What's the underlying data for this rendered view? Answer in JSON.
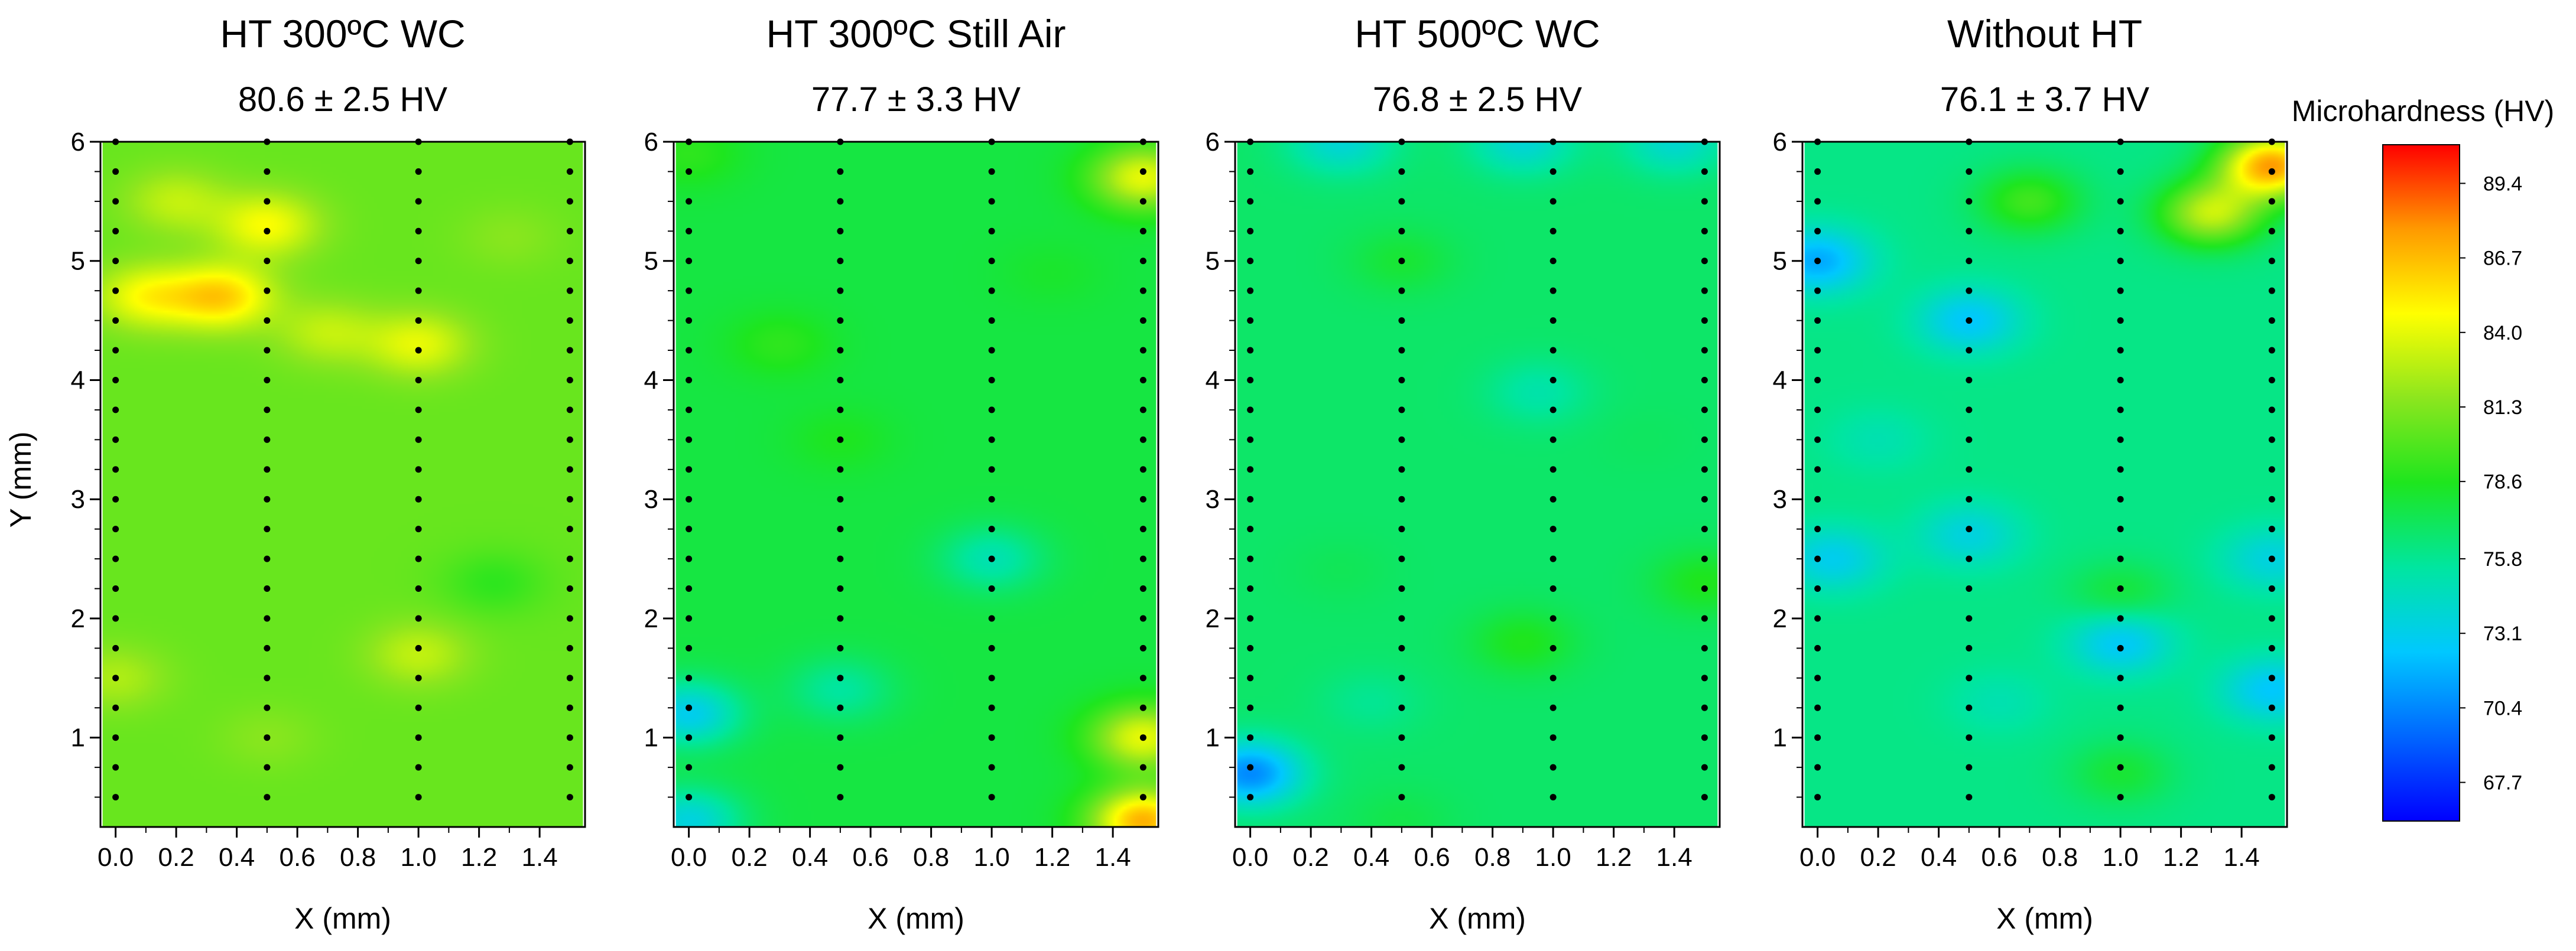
{
  "chart_data": {
    "type": "heatmap",
    "ylabel": "Y (mm)",
    "xlabel": "X (mm)",
    "xlim": [
      -0.05,
      1.55
    ],
    "ylim": [
      0.25,
      6.0
    ],
    "x_ticks": [
      0.0,
      0.2,
      0.4,
      0.6,
      0.8,
      1.0,
      1.2,
      1.4
    ],
    "x_tick_labels": [
      "0.0",
      "0.2",
      "0.4",
      "0.6",
      "0.8",
      "1.0",
      "1.2",
      "1.4"
    ],
    "y_ticks": [
      1,
      2,
      3,
      4,
      5,
      6
    ],
    "y_tick_labels": [
      "1",
      "2",
      "3",
      "4",
      "5",
      "6"
    ],
    "measurement_columns_x": [
      0.0,
      0.5,
      1.0,
      1.5
    ],
    "measurement_rows_y_start": 0.5,
    "measurement_rows_y_step": 0.25,
    "measurement_rows_y_end": 6.0,
    "colorbar": {
      "label": "Microhardness (HV)",
      "min": 66.3,
      "max": 90.8,
      "ticks": [
        89.4,
        86.7,
        84.0,
        81.3,
        78.6,
        75.8,
        73.1,
        70.4,
        67.7
      ],
      "tick_labels": [
        "89.4",
        "86.7",
        "84.0",
        "81.3",
        "78.6",
        "75.8",
        "73.1",
        "70.4",
        "67.7"
      ],
      "colormap": [
        "#0000ff",
        "#0066ff",
        "#00c8ff",
        "#00e6a0",
        "#1ee61e",
        "#8ce61e",
        "#ffff00",
        "#ff9a00",
        "#ff0000"
      ]
    },
    "panels": [
      {
        "title": "HT 300ºC WC",
        "subtitle": "80.6 ± 2.5 HV",
        "mean": 80.6,
        "std": 2.5,
        "hotspots": [
          {
            "x": 0.35,
            "y": 4.7,
            "hv": 86.0
          },
          {
            "x": 0.1,
            "y": 4.7,
            "hv": 84.5
          },
          {
            "x": 0.5,
            "y": 5.3,
            "hv": 84.5
          },
          {
            "x": 1.0,
            "y": 4.3,
            "hv": 84.0
          },
          {
            "x": 0.2,
            "y": 5.5,
            "hv": 83.0
          },
          {
            "x": 1.0,
            "y": 1.7,
            "hv": 83.0
          },
          {
            "x": 0.0,
            "y": 1.5,
            "hv": 82.5
          },
          {
            "x": 0.7,
            "y": 4.4,
            "hv": 83.0
          },
          {
            "x": 1.3,
            "y": 5.2,
            "hv": 81.5
          },
          {
            "x": 0.5,
            "y": 1.0,
            "hv": 81.5
          },
          {
            "x": 1.25,
            "y": 2.3,
            "hv": 79.0
          }
        ]
      },
      {
        "title": "HT 300ºC Still Air",
        "subtitle": "77.7 ± 3.3 HV",
        "mean": 77.7,
        "std": 3.3,
        "hotspots": [
          {
            "x": 1.5,
            "y": 0.3,
            "hv": 87.0
          },
          {
            "x": 1.5,
            "y": 1.0,
            "hv": 84.0
          },
          {
            "x": 1.5,
            "y": 5.7,
            "hv": 84.0
          },
          {
            "x": 0.0,
            "y": 1.2,
            "hv": 73.0
          },
          {
            "x": 0.0,
            "y": 0.3,
            "hv": 73.5
          },
          {
            "x": 1.0,
            "y": 2.5,
            "hv": 75.0
          },
          {
            "x": 0.5,
            "y": 1.4,
            "hv": 75.5
          },
          {
            "x": 0.0,
            "y": 5.9,
            "hv": 79.0
          },
          {
            "x": 0.3,
            "y": 4.3,
            "hv": 79.0
          },
          {
            "x": 1.2,
            "y": 4.9,
            "hv": 78.2
          },
          {
            "x": 0.5,
            "y": 3.5,
            "hv": 78.5
          }
        ]
      },
      {
        "title": "HT 500ºC WC",
        "subtitle": "76.8 ± 2.5 HV",
        "mean": 76.8,
        "std": 2.5,
        "hotspots": [
          {
            "x": 0.0,
            "y": 0.7,
            "hv": 70.5
          },
          {
            "x": 0.3,
            "y": 6.0,
            "hv": 73.8
          },
          {
            "x": 0.9,
            "y": 6.0,
            "hv": 73.8
          },
          {
            "x": 1.4,
            "y": 6.0,
            "hv": 74.0
          },
          {
            "x": 0.95,
            "y": 3.9,
            "hv": 75.2
          },
          {
            "x": 0.4,
            "y": 1.3,
            "hv": 75.8
          },
          {
            "x": 0.5,
            "y": 5.0,
            "hv": 78.0
          },
          {
            "x": 0.9,
            "y": 1.8,
            "hv": 78.6
          },
          {
            "x": 1.5,
            "y": 2.3,
            "hv": 78.6
          },
          {
            "x": 0.5,
            "y": 0.3,
            "hv": 77.5
          },
          {
            "x": 0.3,
            "y": 2.4,
            "hv": 77.2
          },
          {
            "x": 1.3,
            "y": 3.5,
            "hv": 77.0
          }
        ]
      },
      {
        "title": "Without HT",
        "subtitle": "76.1 ± 3.7 HV",
        "mean": 76.1,
        "std": 3.7,
        "hotspots": [
          {
            "x": 1.5,
            "y": 5.8,
            "hv": 87.5
          },
          {
            "x": 1.3,
            "y": 5.4,
            "hv": 83.0
          },
          {
            "x": 0.0,
            "y": 5.0,
            "hv": 71.5
          },
          {
            "x": 0.5,
            "y": 4.5,
            "hv": 72.5
          },
          {
            "x": 0.05,
            "y": 2.5,
            "hv": 73.0
          },
          {
            "x": 1.0,
            "y": 1.8,
            "hv": 72.5
          },
          {
            "x": 1.5,
            "y": 1.4,
            "hv": 72.5
          },
          {
            "x": 1.5,
            "y": 2.5,
            "hv": 73.5
          },
          {
            "x": 0.5,
            "y": 2.7,
            "hv": 73.5
          },
          {
            "x": 1.0,
            "y": 2.2,
            "hv": 78.0
          },
          {
            "x": 1.0,
            "y": 0.7,
            "hv": 78.0
          },
          {
            "x": 0.7,
            "y": 5.5,
            "hv": 79.5
          },
          {
            "x": 0.2,
            "y": 3.5,
            "hv": 75.0
          },
          {
            "x": 0.6,
            "y": 1.3,
            "hv": 75.0
          }
        ]
      }
    ]
  }
}
